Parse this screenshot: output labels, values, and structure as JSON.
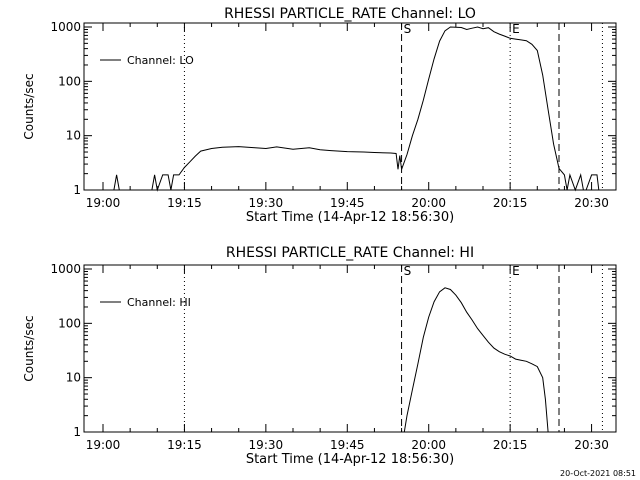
{
  "chart_data": [
    {
      "type": "line",
      "title": "RHESSI PARTICLE_RATE Channel: LO",
      "xlabel": "Start Time (14-Apr-12 18:56:30)",
      "ylabel": "Counts/sec",
      "xlim": [
        "18:56:30",
        "20:34:30"
      ],
      "ylim": [
        1,
        1000
      ],
      "yscale": "log",
      "x_ticks": [
        "19:00",
        "19:15",
        "19:30",
        "19:45",
        "20:00",
        "20:15",
        "20:30"
      ],
      "y_ticks": [
        "1",
        "10",
        "100",
        "1000"
      ],
      "grid": false,
      "legend": {
        "position": "top-left",
        "entries": [
          "Channel: LO"
        ]
      },
      "markers": [
        {
          "time": "19:15",
          "style": "dotted",
          "label": ""
        },
        {
          "time": "19:55",
          "style": "dashed",
          "label": "S"
        },
        {
          "time": "20:15",
          "style": "dotted",
          "label": "E"
        },
        {
          "time": "20:24",
          "style": "dashed",
          "label": ""
        },
        {
          "time": "20:32",
          "style": "dotted",
          "label": ""
        }
      ],
      "series": [
        {
          "name": "Channel: LO",
          "points": [
            [
              "18:56:30",
              1
            ],
            [
              "19:02",
              1
            ],
            [
              "19:02:30",
              1.9
            ],
            [
              "19:03",
              1
            ],
            [
              "19:06",
              1
            ],
            [
              "19:09",
              1
            ],
            [
              "19:09:30",
              1.9
            ],
            [
              "19:10",
              1
            ],
            [
              "19:11",
              1.9
            ],
            [
              "19:12",
              1.9
            ],
            [
              "19:12:30",
              1
            ],
            [
              "19:13",
              1.9
            ],
            [
              "19:14",
              1.9
            ],
            [
              "19:15",
              2.6
            ],
            [
              "19:16",
              3.3
            ],
            [
              "19:17",
              4.2
            ],
            [
              "19:18",
              5.2
            ],
            [
              "19:20",
              5.8
            ],
            [
              "19:22",
              6.1
            ],
            [
              "19:25",
              6.3
            ],
            [
              "19:28",
              6.0
            ],
            [
              "19:30",
              5.8
            ],
            [
              "19:32",
              6.2
            ],
            [
              "19:35",
              5.6
            ],
            [
              "19:38",
              6.0
            ],
            [
              "19:40",
              5.5
            ],
            [
              "19:42",
              5.3
            ],
            [
              "19:45",
              5.1
            ],
            [
              "19:48",
              5.0
            ],
            [
              "19:50",
              4.9
            ],
            [
              "19:53",
              4.8
            ],
            [
              "19:54",
              4.7
            ],
            [
              "19:54:20",
              2.4
            ],
            [
              "19:54:40",
              4.3
            ],
            [
              "19:55",
              2.4
            ],
            [
              "19:56",
              4.5
            ],
            [
              "19:57",
              10
            ],
            [
              "19:58",
              20
            ],
            [
              "19:59",
              45
            ],
            [
              "20:00",
              110
            ],
            [
              "20:01",
              260
            ],
            [
              "20:02",
              550
            ],
            [
              "20:03",
              850
            ],
            [
              "20:04",
              1000
            ],
            [
              "20:06",
              980
            ],
            [
              "20:07",
              900
            ],
            [
              "20:08",
              950
            ],
            [
              "20:09",
              1000
            ],
            [
              "20:10",
              930
            ],
            [
              "20:11",
              970
            ],
            [
              "20:12",
              820
            ],
            [
              "20:13",
              740
            ],
            [
              "20:14",
              680
            ],
            [
              "20:15",
              620
            ],
            [
              "20:16",
              600
            ],
            [
              "20:17",
              580
            ],
            [
              "20:18",
              560
            ],
            [
              "20:19",
              480
            ],
            [
              "20:20",
              370
            ],
            [
              "20:21",
              130
            ],
            [
              "20:22",
              30
            ],
            [
              "20:23",
              7
            ],
            [
              "20:24",
              2.5
            ],
            [
              "20:25",
              1.9
            ],
            [
              "20:25:30",
              1
            ],
            [
              "20:26",
              1.9
            ],
            [
              "20:27",
              1
            ],
            [
              "20:28",
              1.9
            ],
            [
              "20:28:30",
              1
            ],
            [
              "20:29",
              1
            ],
            [
              "20:30",
              1.9
            ],
            [
              "20:31",
              1.9
            ],
            [
              "20:31:20",
              1
            ],
            [
              "20:34:30",
              1
            ]
          ]
        }
      ]
    },
    {
      "type": "line",
      "title": "RHESSI PARTICLE_RATE Channel: HI",
      "xlabel": "Start Time (14-Apr-12 18:56:30)",
      "ylabel": "Counts/sec",
      "xlim": [
        "18:56:30",
        "20:34:30"
      ],
      "ylim": [
        1,
        1000
      ],
      "yscale": "log",
      "x_ticks": [
        "19:00",
        "19:15",
        "19:30",
        "19:45",
        "20:00",
        "20:15",
        "20:30"
      ],
      "y_ticks": [
        "1",
        "10",
        "100",
        "1000"
      ],
      "grid": false,
      "legend": {
        "position": "top-left",
        "entries": [
          "Channel: HI"
        ]
      },
      "markers": [
        {
          "time": "19:15",
          "style": "dotted",
          "label": ""
        },
        {
          "time": "19:55",
          "style": "dashed",
          "label": "S"
        },
        {
          "time": "20:15",
          "style": "dotted",
          "label": "E"
        },
        {
          "time": "20:24",
          "style": "dashed",
          "label": ""
        },
        {
          "time": "20:32",
          "style": "dotted",
          "label": ""
        }
      ],
      "series": [
        {
          "name": "Channel: HI",
          "points": [
            [
              "19:55:30",
              1
            ],
            [
              "19:56",
              2
            ],
            [
              "19:57",
              6
            ],
            [
              "19:58",
              18
            ],
            [
              "19:59",
              55
            ],
            [
              "20:00",
              130
            ],
            [
              "20:01",
              250
            ],
            [
              "20:02",
              380
            ],
            [
              "20:03",
              450
            ],
            [
              "20:04",
              420
            ],
            [
              "20:05",
              330
            ],
            [
              "20:06",
              240
            ],
            [
              "20:07",
              160
            ],
            [
              "20:08",
              115
            ],
            [
              "20:09",
              80
            ],
            [
              "20:10",
              60
            ],
            [
              "20:11",
              45
            ],
            [
              "20:12",
              35
            ],
            [
              "20:13",
              30
            ],
            [
              "20:14",
              27
            ],
            [
              "20:15",
              25
            ],
            [
              "20:16",
              22
            ],
            [
              "20:17",
              21
            ],
            [
              "20:18",
              20
            ],
            [
              "20:19",
              18
            ],
            [
              "20:20",
              16
            ],
            [
              "20:21",
              10
            ],
            [
              "20:21:30",
              4
            ],
            [
              "20:22",
              1
            ]
          ]
        }
      ]
    }
  ],
  "footer": {
    "timestamp": "20-Oct-2021 08:51"
  },
  "colors": {
    "line": "#000000",
    "background": "#ffffff"
  }
}
